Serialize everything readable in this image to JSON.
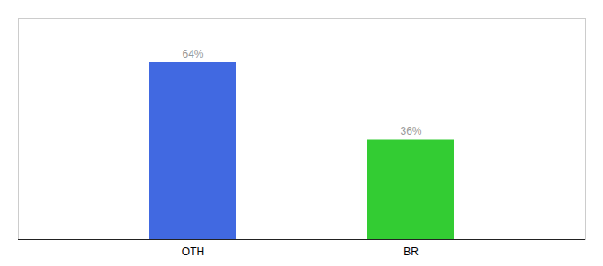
{
  "chart_data": {
    "type": "bar",
    "categories": [
      "OTH",
      "BR"
    ],
    "values": [
      64,
      36
    ],
    "value_labels": [
      "64%",
      "36%"
    ],
    "colors": [
      "#4169e1",
      "#33cc33"
    ],
    "ylim": [
      0,
      80
    ],
    "data_labels": true,
    "tick_labels": "x"
  }
}
